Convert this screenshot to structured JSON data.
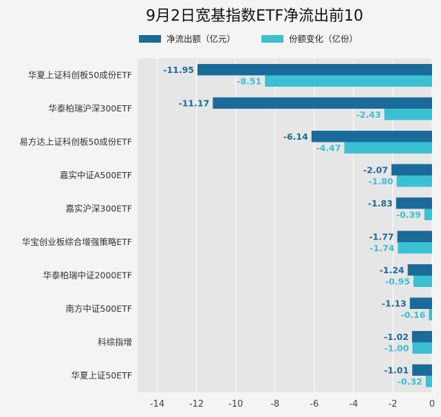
{
  "chart_data": {
    "type": "bar",
    "orientation": "horizontal",
    "title": "9月2日宽基指数ETF净流出前10",
    "categories": [
      "华夏上证科创板50成份ETF",
      "华泰柏瑞沪深300ETF",
      "易方达上证科创板50成份ETF",
      "嘉实中证A500ETF",
      "嘉实沪深300ETF",
      "华宝创业板综合增强策略ETF",
      "华泰柏瑞中证2000ETF",
      "南方中证500ETF",
      "科综指增",
      "华夏上证50ETF"
    ],
    "series": [
      {
        "name": "净流出额（亿元）",
        "color": "#1a6b9a",
        "values": [
          -11.95,
          -11.17,
          -6.14,
          -2.07,
          -1.83,
          -1.77,
          -1.24,
          -1.13,
          -1.02,
          -1.01
        ],
        "labels": [
          "-11.95",
          "-11.17",
          "-6.14",
          "-2.07",
          "-1.83",
          "-1.77",
          "-1.24",
          "-1.13",
          "-1.02",
          "-1.01"
        ]
      },
      {
        "name": "份额变化（亿份）",
        "color": "#3bbfd3",
        "values": [
          -8.51,
          -2.43,
          -4.47,
          -1.8,
          -0.39,
          -1.74,
          -0.95,
          -0.16,
          -1.0,
          -0.32
        ],
        "labels": [
          "-8.51",
          "-2.43",
          "-4.47",
          "-1.80",
          "-0.39",
          "-1.74",
          "-0.95",
          "-0.16",
          "-1.00",
          "-0.32"
        ]
      }
    ],
    "xlim": [
      -15,
      0
    ],
    "xticks": [
      -14,
      -12,
      -10,
      -8,
      -6,
      -4,
      -2,
      0
    ],
    "xtick_labels": [
      "-14",
      "-12",
      "-10",
      "-8",
      "-6",
      "-4",
      "-2",
      "0"
    ],
    "grid": true,
    "legend_position": "top"
  }
}
